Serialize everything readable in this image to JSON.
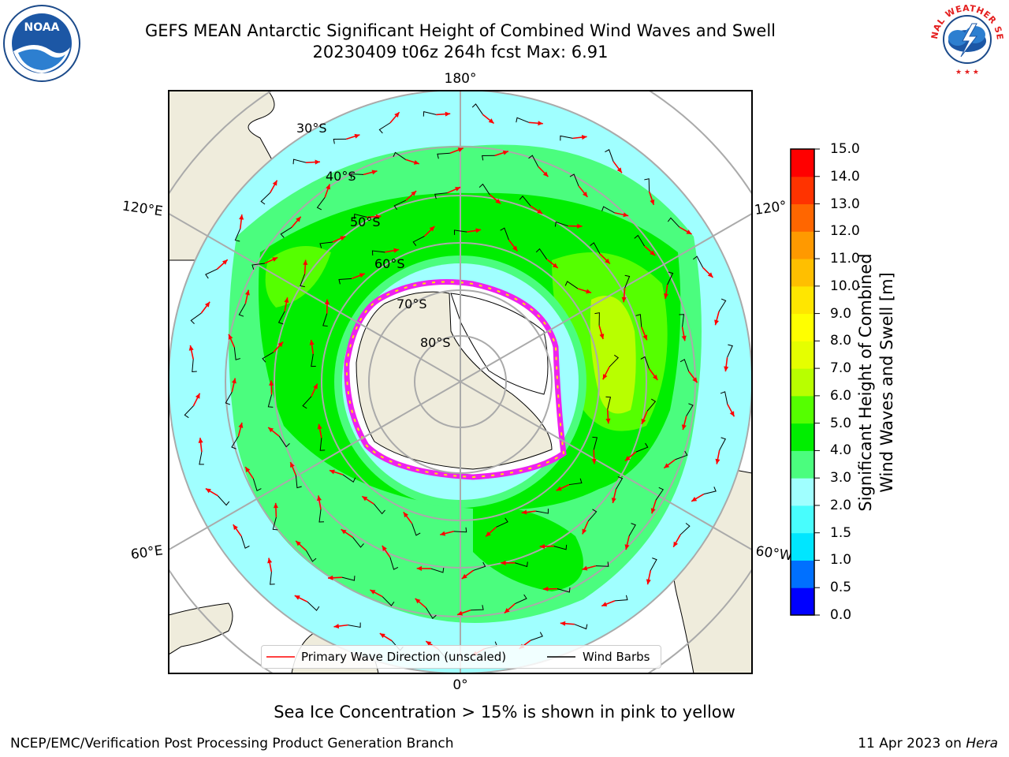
{
  "header": {
    "title_line1": "GEFS MEAN Antarctic Significant Height of Combined Wind Waves and Swell",
    "title_line2": "20230409 t06z 264h fcst   Max: 6.91"
  },
  "logos": {
    "left": {
      "name": "noaa-logo",
      "text": "NOAA"
    },
    "right": {
      "name": "national-weather-service-logo",
      "text": "NATIONAL WEATHER SERVICE"
    }
  },
  "map": {
    "projection": "south-polar-stereographic",
    "longitude_labels": {
      "top": "180°",
      "bottom": "0°",
      "left_upper": "120°E",
      "left_lower": "60°E",
      "right_upper": "120°",
      "right_lower": "60°W"
    },
    "latitude_labels": [
      "30°S",
      "40°S",
      "50°S",
      "60°S",
      "70°S",
      "80°S"
    ],
    "colors": {
      "land": "#efecdc",
      "ice_sheet": "#ffffff",
      "sea_ice_edge": "#ee22ee",
      "wave_arrow": "#ff0000",
      "wind_barb": "#000000"
    }
  },
  "colorbar": {
    "title_line1": "Significant Height of Combined",
    "title_line2": "Wind Waves and Swell [m]",
    "ticks": [
      "0.0",
      "0.5",
      "1.0",
      "1.5",
      "2.0",
      "3.0",
      "4.0",
      "5.0",
      "6.0",
      "7.0",
      "8.0",
      "9.0",
      "10.0",
      "11.0",
      "12.0",
      "13.0",
      "14.0",
      "15.0"
    ],
    "colors": [
      "#0000ff",
      "#0070ff",
      "#00e6ff",
      "#48fdfd",
      "#a0ffff",
      "#4bfd7e",
      "#00ee00",
      "#55ff00",
      "#b8ff00",
      "#e5ff00",
      "#ffff00",
      "#ffe600",
      "#ffbf00",
      "#ff9900",
      "#ff6600",
      "#ff3300",
      "#ff0000"
    ]
  },
  "legend": {
    "wave_direction": "Primary Wave Direction (unscaled)",
    "wind_barbs": "Wind Barbs"
  },
  "footer": {
    "note": "Sea Ice Concentration > 15% is shown in pink to yellow",
    "credit": "NCEP/EMC/Verification Post Processing Product Generation Branch",
    "date": "11 Apr 2023 on ",
    "machine": "Hera"
  }
}
